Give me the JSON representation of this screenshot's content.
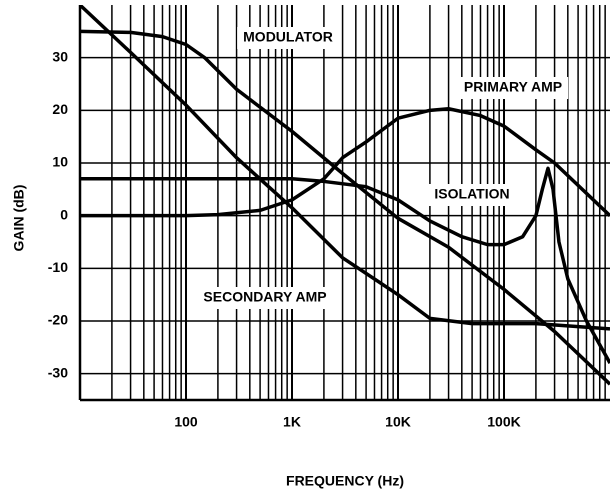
{
  "chart_data": {
    "type": "line",
    "xlabel": "FREQUENCY (Hz)",
    "ylabel": "GAIN (dB)",
    "xscale": "log",
    "grid": true,
    "minor_grid": true,
    "xlim": [
      10,
      1000000
    ],
    "ylim": [
      -35,
      40
    ],
    "xticks": [
      100,
      {
        "value": 1000,
        "label": "1K"
      },
      {
        "value": 10000,
        "label": "10K"
      },
      {
        "value": 100000,
        "label": "100K"
      }
    ],
    "yticks": [
      -30,
      -20,
      -10,
      0,
      10,
      20,
      30
    ],
    "series": [
      {
        "name": "MODULATOR",
        "color": "#000000",
        "x": [
          10,
          30,
          60,
          100,
          150,
          300,
          1000,
          3000,
          10000,
          30000,
          100000,
          300000,
          1000000
        ],
        "values": [
          35,
          34.8,
          34,
          32.5,
          30,
          24,
          16,
          8,
          -0.5,
          -6,
          -14,
          -22,
          -32
        ]
      },
      {
        "name": "PRIMARY AMP",
        "color": "#000000",
        "x": [
          10,
          100,
          200,
          500,
          1000,
          2000,
          3000,
          5000,
          10000,
          20000,
          30000,
          60000,
          100000,
          200000,
          300000,
          1000000
        ],
        "values": [
          0,
          0,
          0.2,
          1,
          3,
          7,
          11,
          14,
          18.5,
          20,
          20.3,
          19,
          17,
          12.5,
          10,
          0
        ]
      },
      {
        "name": "ISOLATION",
        "color": "#000000",
        "x": [
          10,
          1000,
          2000,
          5000,
          10000,
          20000,
          40000,
          70000,
          100000,
          150000,
          200000,
          230000,
          260000,
          290000,
          330000,
          400000,
          600000,
          1000000
        ],
        "values": [
          7,
          7,
          6.5,
          5.5,
          3,
          -1,
          -4,
          -5.5,
          -5.5,
          -4,
          0,
          5,
          9,
          5,
          -5,
          -12,
          -20,
          -28
        ]
      },
      {
        "name": "SECONDARY AMP",
        "color": "#000000",
        "x": [
          10,
          30,
          100,
          300,
          1000,
          3000,
          10000,
          20000,
          50000,
          200000,
          1000000
        ],
        "values": [
          40,
          31,
          21,
          11,
          1.5,
          -8,
          -15,
          -19.5,
          -20.5,
          -20.5,
          -21.5
        ]
      }
    ]
  }
}
